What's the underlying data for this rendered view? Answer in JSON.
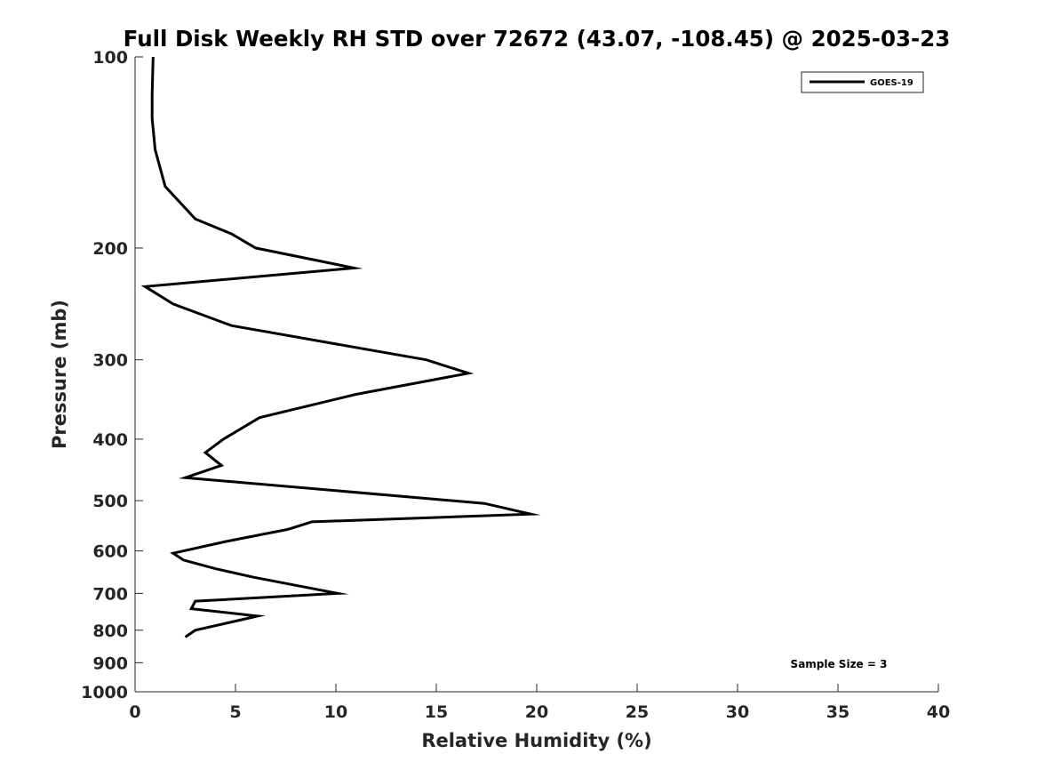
{
  "chart_data": {
    "type": "line",
    "title": "Full Disk Weekly RH STD over 72672 (43.07, -108.45) @ 2025-03-23",
    "xlabel": "Relative Humidity (%)",
    "ylabel": "Pressure (mb)",
    "xlim": [
      0,
      40
    ],
    "ylim": [
      1000,
      100
    ],
    "y_scale": "log",
    "y_reversed": true,
    "grid": false,
    "x_ticks": [
      0,
      5,
      10,
      15,
      20,
      25,
      30,
      35,
      40
    ],
    "x_tick_labels": [
      "0",
      "5",
      "10",
      "15",
      "20",
      "25",
      "30",
      "35",
      "40"
    ],
    "y_ticks": [
      100,
      200,
      300,
      400,
      500,
      600,
      700,
      800,
      900,
      1000
    ],
    "y_tick_labels": [
      "100",
      "200",
      "300",
      "400",
      "500",
      "600",
      "700",
      "800",
      "900",
      "1000"
    ],
    "legend": {
      "position": "top-right",
      "entries": [
        "GOES-19"
      ]
    },
    "annotation": "Sample Size = 3",
    "series": [
      {
        "name": "GOES-19",
        "color": "#000000",
        "x": [
          0.9,
          0.85,
          0.85,
          1.0,
          1.5,
          3.0,
          4.8,
          6.0,
          10.9,
          0.5,
          1.9,
          4.8,
          14.5,
          16.6,
          11.0,
          6.2,
          4.4,
          3.5,
          4.3,
          2.5,
          17.4,
          19.7,
          8.8,
          7.6,
          4.5,
          1.9,
          2.4,
          4.0,
          5.9,
          10.1,
          3.0,
          2.8,
          6.1,
          3.0,
          2.5
        ],
        "y": [
          100,
          115,
          125,
          140,
          160,
          180,
          190,
          200,
          215,
          230,
          245,
          265,
          300,
          315,
          340,
          370,
          400,
          420,
          440,
          460,
          505,
          525,
          540,
          555,
          580,
          605,
          620,
          640,
          660,
          700,
          720,
          740,
          760,
          800,
          820
        ]
      }
    ]
  }
}
